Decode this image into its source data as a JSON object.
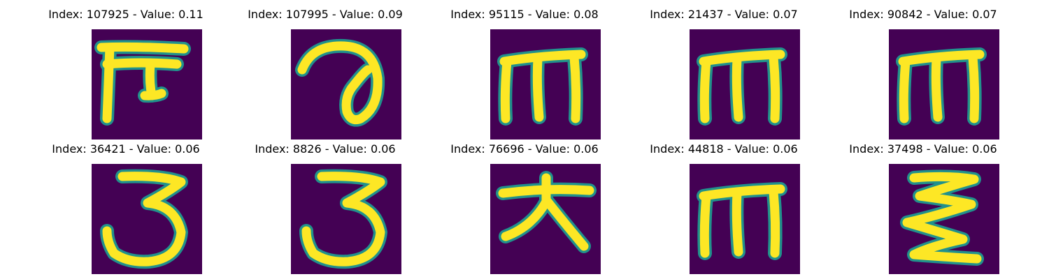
{
  "colors": {
    "background": "#440154",
    "edge": "#21918c",
    "stroke": "#fde725"
  },
  "items": [
    {
      "title": "Index: 107925 - Value: 0.11",
      "glyph": "glyph-f-icon"
    },
    {
      "title": "Index: 107995 - Value: 0.09",
      "glyph": "glyph-curl-icon"
    },
    {
      "title": "Index: 95115 - Value: 0.08",
      "glyph": "glyph-m-icon"
    },
    {
      "title": "Index: 21437 - Value: 0.07",
      "glyph": "glyph-m-icon"
    },
    {
      "title": "Index: 90842 - Value: 0.07",
      "glyph": "glyph-m-icon"
    },
    {
      "title": "Index: 36421 - Value: 0.06",
      "glyph": "glyph-three-icon"
    },
    {
      "title": "Index: 8826 - Value: 0.06",
      "glyph": "glyph-three-icon"
    },
    {
      "title": "Index: 76696 - Value: 0.06",
      "glyph": "glyph-dai-icon"
    },
    {
      "title": "Index: 44818 - Value: 0.06",
      "glyph": "glyph-m-icon"
    },
    {
      "title": "Index: 37498 - Value: 0.06",
      "glyph": "glyph-zigzag-icon"
    }
  ]
}
